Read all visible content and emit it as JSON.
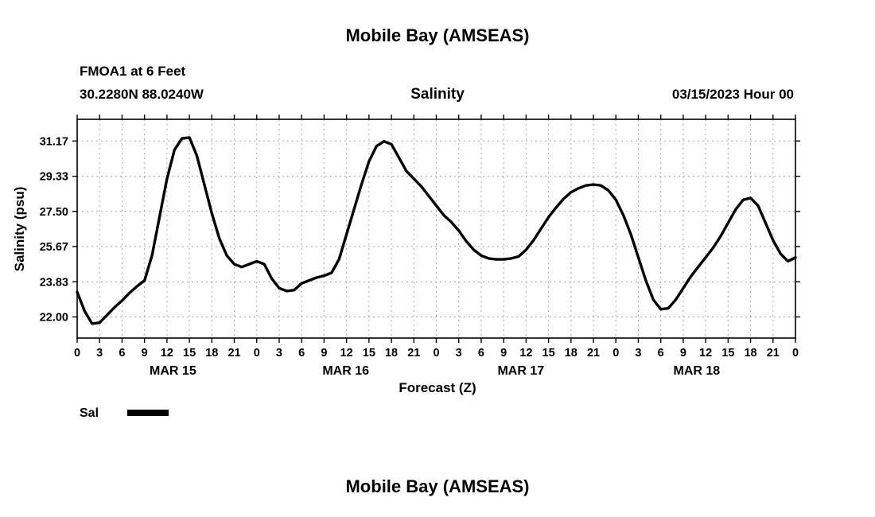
{
  "page": {
    "top_title": "Mobile Bay (AMSEAS)",
    "bottom_title": "Mobile Bay (AMSEAS)"
  },
  "header": {
    "station": "FMOA1 at 6 Feet",
    "coords": "30.2280N  88.0240W",
    "plot_title": "Salinity",
    "datetime": "03/15/2023 Hour 00"
  },
  "legend": {
    "sal_label": "Sal",
    "line_color": "#000000"
  },
  "chart_data": {
    "type": "line",
    "title": "Salinity",
    "xlabel": "Forecast (Z)",
    "ylabel": "Salinity (psu)",
    "grid": true,
    "legend_position": "below-left",
    "line_color": "#000000",
    "grid_color": "#aaaaaa",
    "ylim": [
      20.9,
      32.3
    ],
    "yticks": [
      22.0,
      23.83,
      25.67,
      27.5,
      29.33,
      31.17
    ],
    "ytick_labels": [
      "22.00",
      "23.83",
      "25.67",
      "27.50",
      "29.33",
      "31.17"
    ],
    "xlim": [
      0,
      96
    ],
    "xticks": [
      [
        0,
        "0"
      ],
      [
        3,
        "3"
      ],
      [
        6,
        "6"
      ],
      [
        9,
        "9"
      ],
      [
        12,
        "12"
      ],
      [
        15,
        "15"
      ],
      [
        18,
        "18"
      ],
      [
        21,
        "21"
      ],
      [
        24,
        "0"
      ],
      [
        27,
        "3"
      ],
      [
        30,
        "6"
      ],
      [
        33,
        "9"
      ],
      [
        36,
        "12"
      ],
      [
        39,
        "15"
      ],
      [
        42,
        "18"
      ],
      [
        45,
        "21"
      ],
      [
        48,
        "0"
      ],
      [
        51,
        "3"
      ],
      [
        54,
        "6"
      ],
      [
        57,
        "9"
      ],
      [
        60,
        "12"
      ],
      [
        63,
        "15"
      ],
      [
        66,
        "18"
      ],
      [
        69,
        "21"
      ],
      [
        72,
        "0"
      ],
      [
        75,
        "3"
      ],
      [
        78,
        "6"
      ],
      [
        81,
        "9"
      ],
      [
        84,
        "12"
      ],
      [
        87,
        "15"
      ],
      [
        90,
        "18"
      ],
      [
        93,
        "21"
      ],
      [
        96,
        "0"
      ]
    ],
    "day_labels": [
      [
        12.8,
        "MAR 15"
      ],
      [
        35.9,
        "MAR 16"
      ],
      [
        59.3,
        "MAR 17"
      ],
      [
        82.8,
        "MAR 18"
      ]
    ],
    "series": [
      {
        "name": "Sal",
        "x_start": 0,
        "x_step_hours": 1,
        "values": [
          23.3,
          22.3,
          21.65,
          21.7,
          22.1,
          22.5,
          22.85,
          23.25,
          23.6,
          23.9,
          25.2,
          27.2,
          29.2,
          30.7,
          31.3,
          31.35,
          30.4,
          28.9,
          27.4,
          26.1,
          25.2,
          24.75,
          24.6,
          24.75,
          24.9,
          24.75,
          24.0,
          23.5,
          23.35,
          23.4,
          23.75,
          23.9,
          24.05,
          24.15,
          24.3,
          25.0,
          26.3,
          27.6,
          28.9,
          30.1,
          30.9,
          31.15,
          31.0,
          30.3,
          29.6,
          29.2,
          28.8,
          28.3,
          27.8,
          27.3,
          26.95,
          26.5,
          25.95,
          25.5,
          25.2,
          25.05,
          25.0,
          25.0,
          25.05,
          25.15,
          25.5,
          26.0,
          26.6,
          27.2,
          27.7,
          28.15,
          28.5,
          28.7,
          28.85,
          28.9,
          28.85,
          28.6,
          28.1,
          27.3,
          26.3,
          25.1,
          23.9,
          22.9,
          22.4,
          22.45,
          22.9,
          23.5,
          24.1,
          24.6,
          25.1,
          25.6,
          26.2,
          26.9,
          27.6,
          28.1,
          28.2,
          27.8,
          26.9,
          26.0,
          25.3,
          24.9,
          25.1
        ]
      }
    ]
  }
}
